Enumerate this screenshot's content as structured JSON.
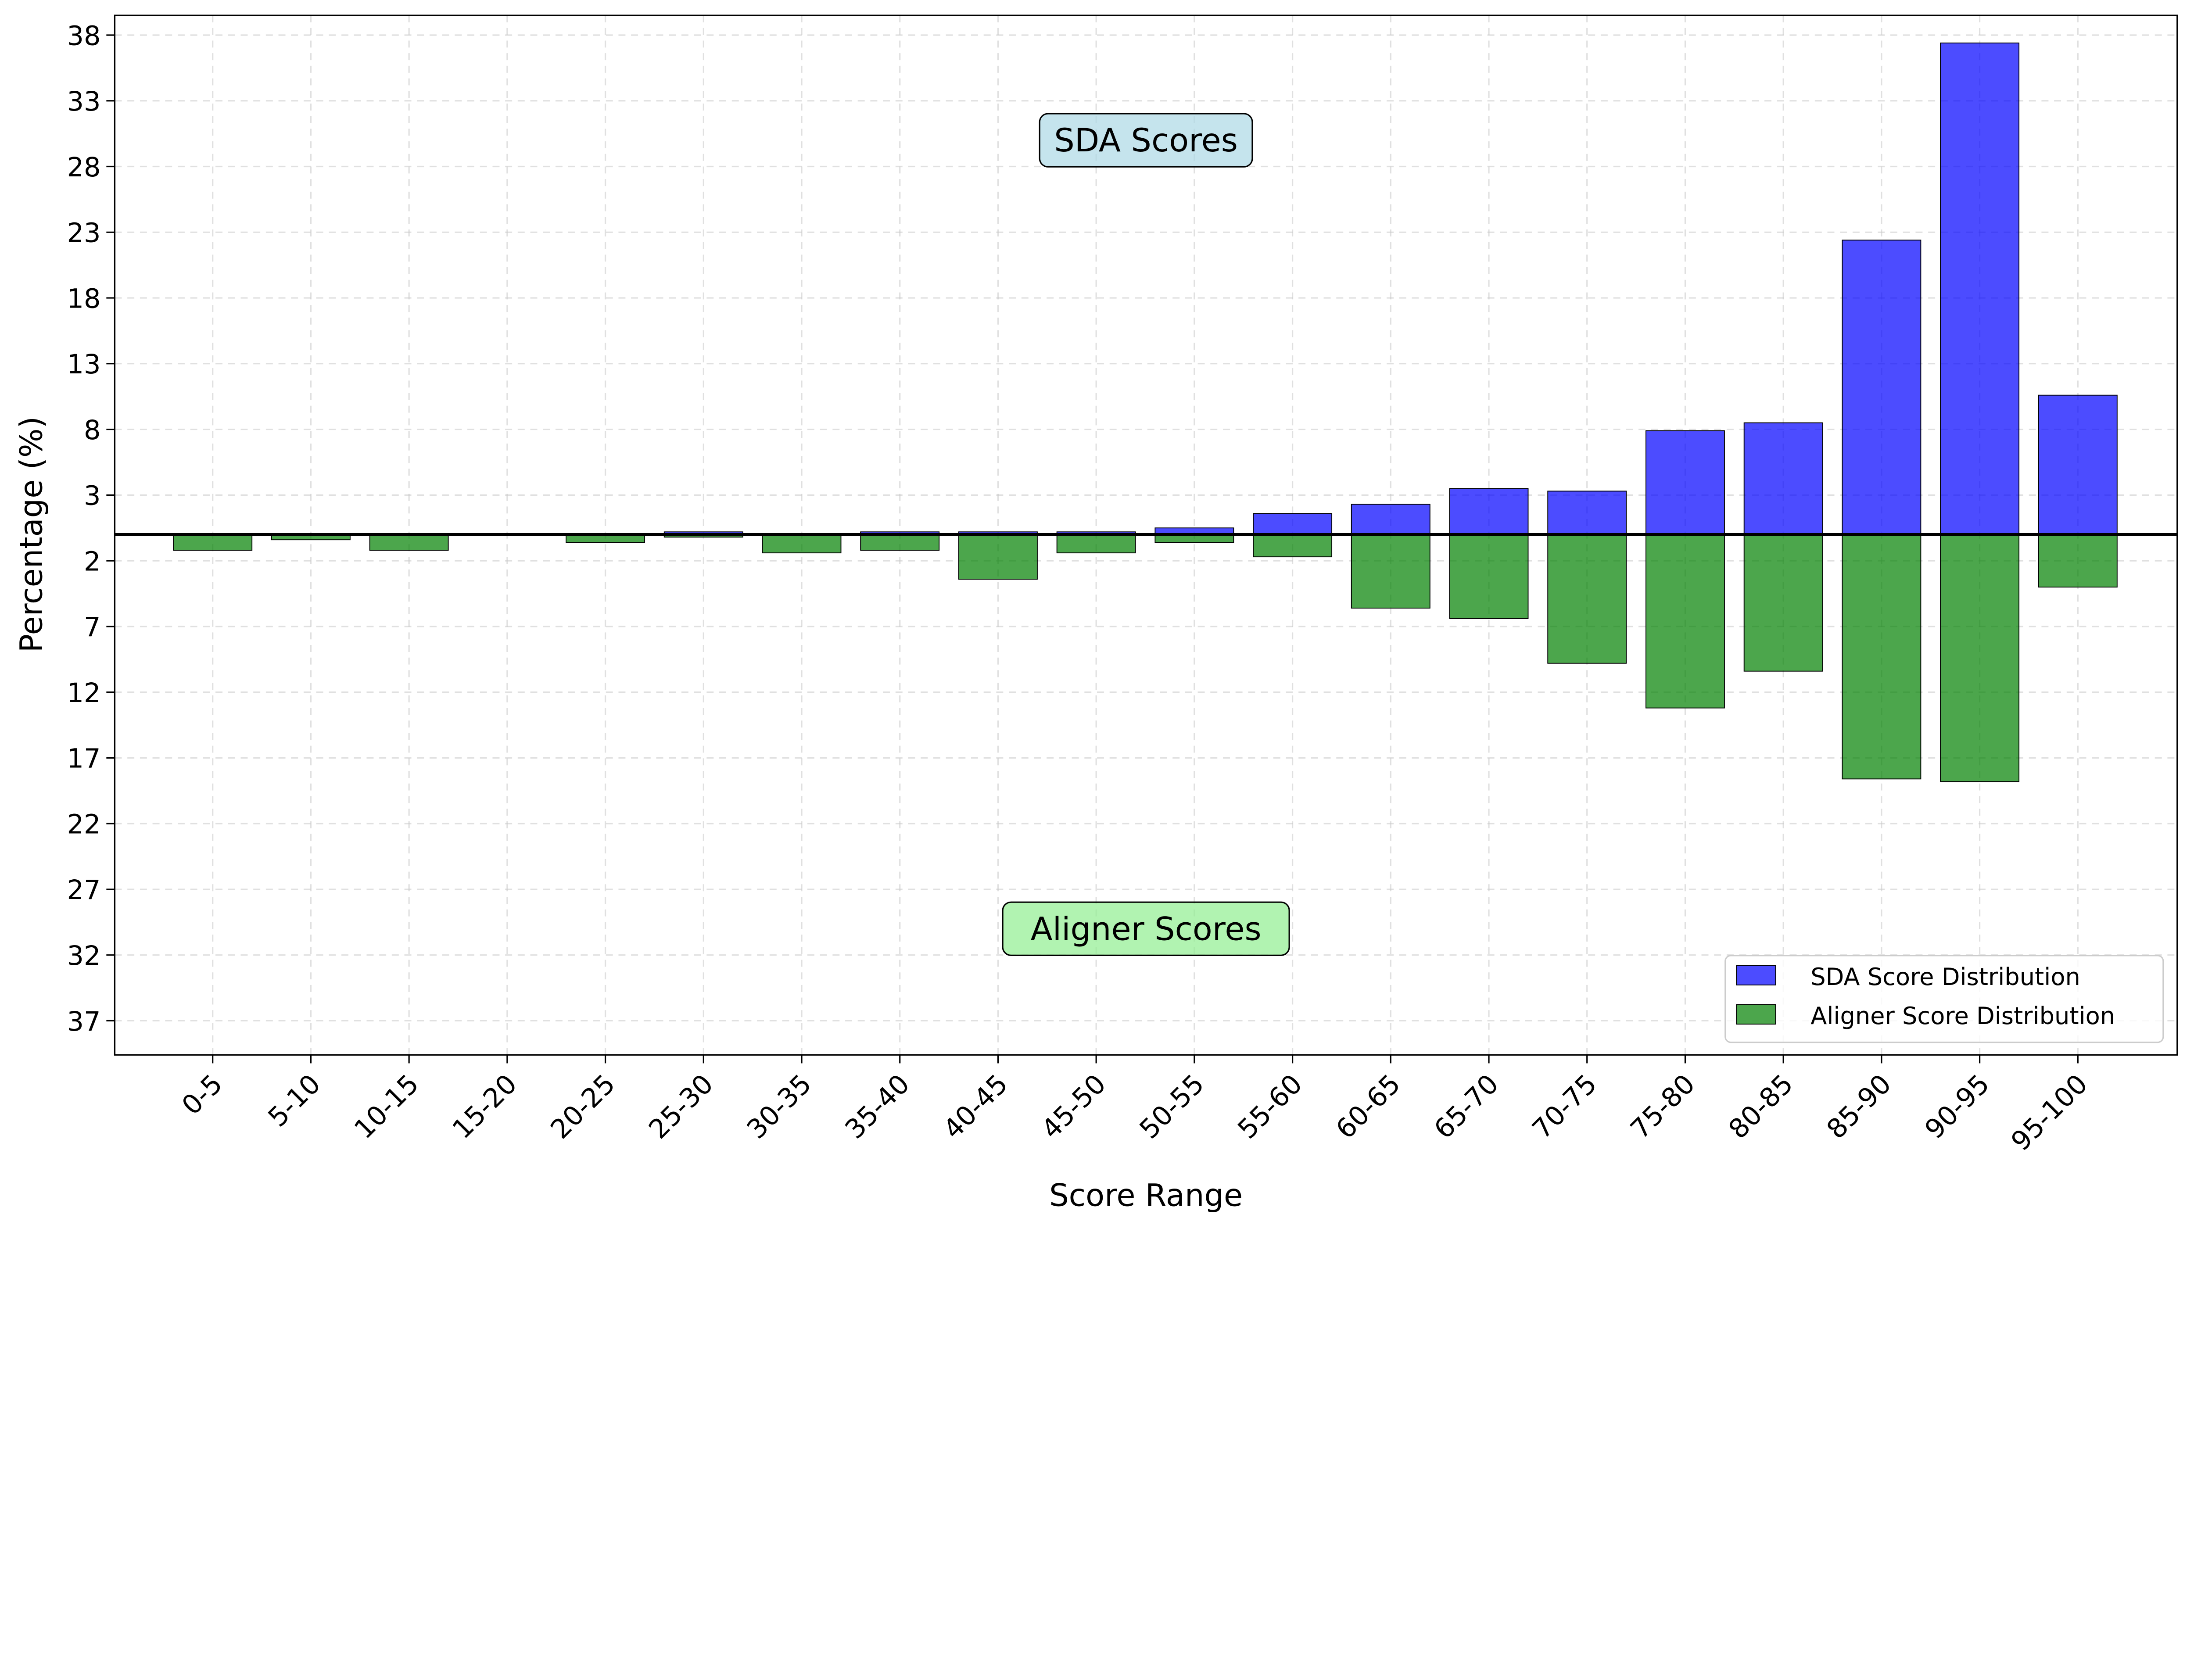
{
  "chart_data": {
    "type": "bar",
    "title": "",
    "xlabel": "Score Range",
    "ylabel": "Percentage (%)",
    "categories": [
      "0-5",
      "5-10",
      "10-15",
      "15-20",
      "20-25",
      "25-30",
      "30-35",
      "35-40",
      "40-45",
      "45-50",
      "50-55",
      "55-60",
      "60-65",
      "65-70",
      "70-75",
      "75-80",
      "80-85",
      "85-90",
      "90-95",
      "95-100"
    ],
    "series": [
      {
        "name": "SDA Score Distribution",
        "color": "#0000ff",
        "direction": "up",
        "values": [
          0,
          0,
          0,
          0,
          0,
          0.2,
          0,
          0.2,
          0.2,
          0.2,
          0.5,
          1.6,
          2.3,
          3.5,
          3.3,
          7.9,
          8.5,
          22.4,
          37.4,
          10.6
        ]
      },
      {
        "name": "Aligner Score Distribution",
        "color": "#008000",
        "direction": "down",
        "values": [
          1.2,
          0.4,
          1.2,
          0,
          0.6,
          0.2,
          1.4,
          1.2,
          3.4,
          1.4,
          0.6,
          1.7,
          5.6,
          6.4,
          9.8,
          13.2,
          10.4,
          18.6,
          18.8,
          4.0
        ]
      }
    ],
    "ylim": [
      -39.6,
      39.5
    ],
    "yticks": [
      38,
      33,
      28,
      23,
      18,
      13,
      8,
      3,
      -2,
      -7,
      -12,
      -17,
      -22,
      -27,
      -32,
      -37
    ],
    "ytick_labels": [
      "38",
      "33",
      "28",
      "23",
      "18",
      "13",
      "8",
      "3",
      "2",
      "7",
      "12",
      "17",
      "22",
      "27",
      "32",
      "37"
    ],
    "grid": true,
    "legend": "bottom-right",
    "annotations": [
      {
        "text": "SDA Scores",
        "box_color": "#add8e6",
        "y": 30
      },
      {
        "text": "Aligner Scores",
        "box_color": "#90ee90",
        "y": -30
      }
    ]
  }
}
